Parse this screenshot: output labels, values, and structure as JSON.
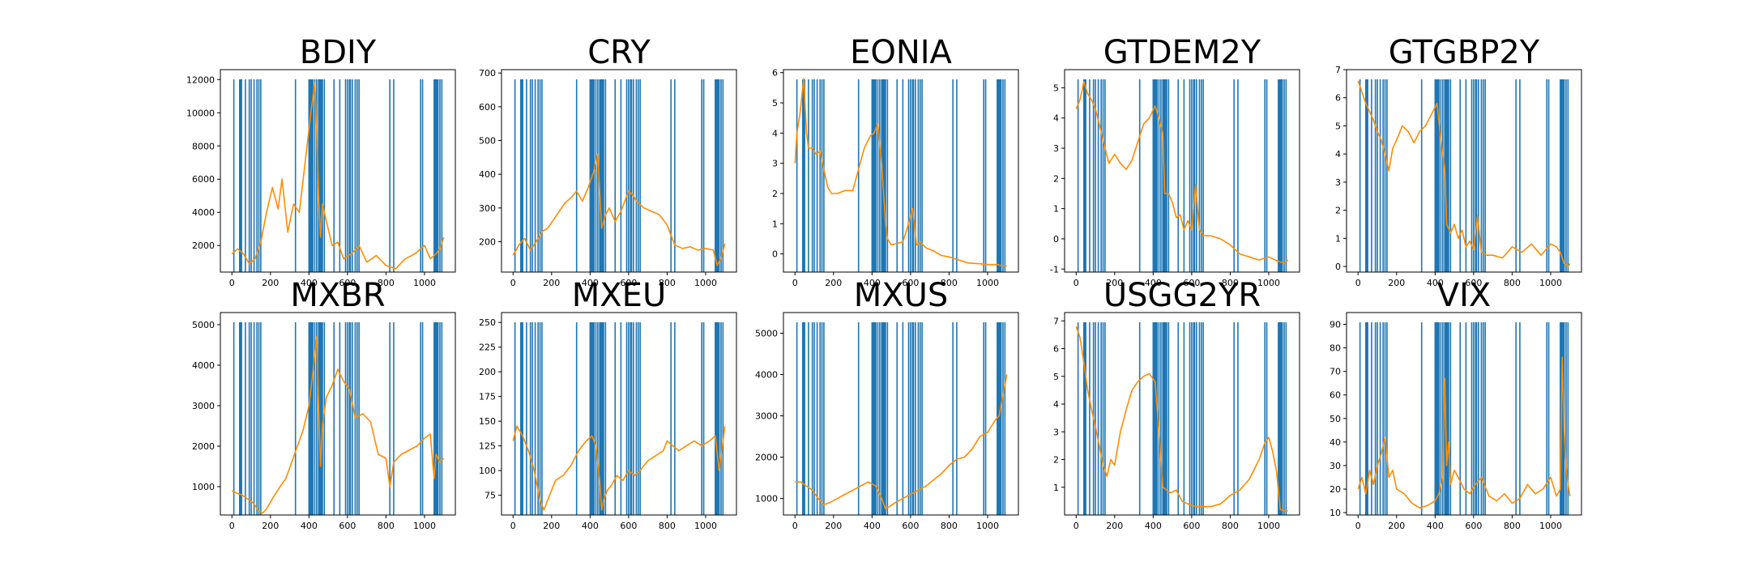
{
  "chart_data": {
    "type": "line",
    "layout": "grid 2x5",
    "event_lines": {
      "color": "#1f77b4",
      "x": [
        10,
        40,
        45,
        50,
        70,
        90,
        100,
        115,
        130,
        140,
        150,
        330,
        400,
        405,
        410,
        415,
        420,
        430,
        440,
        450,
        455,
        460,
        465,
        470,
        480,
        530,
        560,
        590,
        600,
        610,
        615,
        625,
        640,
        650,
        660,
        820,
        840,
        980,
        990,
        1050,
        1055,
        1060,
        1065,
        1070,
        1080,
        1090
      ]
    },
    "line_color": "#ff8c00",
    "panels": [
      {
        "title": "BDIY",
        "xlim": [
          -60,
          1160
        ],
        "xticks": [
          0,
          200,
          400,
          600,
          800,
          1000
        ],
        "ylim": [
          400,
          12600
        ],
        "yticks": [
          2000,
          4000,
          6000,
          8000,
          10000,
          12000
        ],
        "x": [
          0,
          30,
          60,
          90,
          120,
          150,
          180,
          210,
          240,
          260,
          290,
          320,
          350,
          380,
          410,
          430,
          440,
          450,
          460,
          470,
          490,
          520,
          550,
          580,
          620,
          660,
          700,
          750,
          800,
          850,
          900,
          950,
          1000,
          1030,
          1060,
          1080,
          1100
        ],
        "y": [
          1500,
          1800,
          1500,
          900,
          1200,
          2200,
          4000,
          5500,
          4200,
          6000,
          2800,
          4500,
          4000,
          7000,
          10000,
          11800,
          9000,
          5000,
          2500,
          4500,
          3500,
          2000,
          2200,
          1200,
          1500,
          2000,
          1000,
          1400,
          800,
          600,
          1200,
          1500,
          2000,
          1200,
          1500,
          1800,
          2500
        ]
      },
      {
        "title": "CRY",
        "xlim": [
          -60,
          1160
        ],
        "xticks": [
          0,
          200,
          400,
          600,
          800,
          1000
        ],
        "ylim": [
          110,
          710
        ],
        "yticks": [
          200,
          300,
          400,
          500,
          600,
          700
        ],
        "x": [
          0,
          30,
          60,
          90,
          120,
          150,
          180,
          210,
          240,
          270,
          300,
          330,
          360,
          390,
          420,
          440,
          450,
          460,
          480,
          500,
          530,
          560,
          600,
          620,
          640,
          680,
          720,
          760,
          800,
          840,
          880,
          920,
          960,
          1000,
          1040,
          1060,
          1080,
          1100
        ],
        "y": [
          160,
          190,
          210,
          175,
          200,
          230,
          240,
          265,
          290,
          315,
          330,
          350,
          320,
          360,
          410,
          460,
          350,
          240,
          280,
          300,
          260,
          290,
          350,
          340,
          320,
          300,
          290,
          280,
          250,
          190,
          180,
          185,
          175,
          180,
          175,
          130,
          150,
          195
        ]
      },
      {
        "title": "EONIA",
        "xlim": [
          -60,
          1160
        ],
        "xticks": [
          0,
          200,
          400,
          600,
          800,
          1000
        ],
        "ylim": [
          -0.6,
          6.1
        ],
        "yticks": [
          0,
          1,
          2,
          3,
          4,
          5,
          6
        ],
        "x": [
          0,
          10,
          25,
          45,
          60,
          70,
          90,
          110,
          130,
          150,
          170,
          190,
          220,
          260,
          300,
          330,
          360,
          390,
          410,
          430,
          450,
          470,
          480,
          500,
          530,
          560,
          590,
          610,
          620,
          630,
          650,
          680,
          720,
          760,
          800,
          850,
          900,
          950,
          1000,
          1050,
          1080,
          1100
        ],
        "y": [
          3.0,
          4.0,
          4.6,
          5.8,
          4.0,
          3.5,
          3.5,
          3.3,
          3.4,
          2.8,
          2.2,
          2.0,
          2.0,
          2.1,
          2.1,
          2.8,
          3.5,
          3.9,
          4.0,
          4.3,
          3.0,
          1.0,
          0.5,
          0.3,
          0.35,
          0.4,
          1.0,
          1.5,
          1.0,
          0.3,
          0.4,
          0.2,
          0.1,
          -0.05,
          -0.1,
          -0.2,
          -0.3,
          -0.32,
          -0.35,
          -0.35,
          -0.4,
          -0.4
        ]
      },
      {
        "title": "GTDEM2Y",
        "xlim": [
          -60,
          1160
        ],
        "xticks": [
          0,
          200,
          400,
          600,
          800,
          1000
        ],
        "ylim": [
          -1.1,
          5.6
        ],
        "yticks": [
          -1,
          0,
          1,
          2,
          3,
          4,
          5
        ],
        "x": [
          0,
          20,
          40,
          60,
          80,
          100,
          120,
          150,
          170,
          200,
          230,
          260,
          290,
          320,
          350,
          380,
          410,
          430,
          450,
          460,
          480,
          500,
          520,
          540,
          560,
          580,
          600,
          620,
          640,
          660,
          700,
          750,
          800,
          850,
          900,
          950,
          1000,
          1050,
          1080,
          1100
        ],
        "y": [
          4.3,
          4.6,
          5.2,
          4.8,
          4.6,
          4.3,
          3.8,
          3.0,
          2.5,
          2.8,
          2.5,
          2.3,
          2.6,
          3.2,
          3.8,
          4.0,
          4.4,
          4.0,
          3.5,
          1.5,
          1.5,
          1.2,
          0.7,
          0.8,
          0.3,
          0.6,
          0.3,
          1.8,
          0.3,
          0.1,
          0.1,
          0.0,
          -0.2,
          -0.5,
          -0.6,
          -0.7,
          -0.6,
          -0.75,
          -0.8,
          -0.7
        ]
      },
      {
        "title": "GTGBP2Y",
        "xlim": [
          -60,
          1160
        ],
        "xticks": [
          0,
          200,
          400,
          600,
          800,
          1000
        ],
        "ylim": [
          -0.2,
          7.0
        ],
        "yticks": [
          0,
          1,
          2,
          3,
          4,
          5,
          6,
          7
        ],
        "x": [
          0,
          20,
          40,
          60,
          80,
          100,
          120,
          140,
          160,
          180,
          200,
          230,
          260,
          290,
          320,
          350,
          380,
          410,
          430,
          450,
          460,
          480,
          500,
          520,
          540,
          560,
          580,
          600,
          620,
          640,
          670,
          700,
          750,
          800,
          850,
          900,
          950,
          1000,
          1030,
          1050,
          1070,
          1090,
          1100
        ],
        "y": [
          6.6,
          6.2,
          5.8,
          5.5,
          5.2,
          4.8,
          4.5,
          4.0,
          3.4,
          4.2,
          4.5,
          5.0,
          4.8,
          4.4,
          4.8,
          5.0,
          5.4,
          5.8,
          4.5,
          3.5,
          1.5,
          1.2,
          1.5,
          1.0,
          1.3,
          0.7,
          0.9,
          0.6,
          1.8,
          0.5,
          0.4,
          0.4,
          0.3,
          0.7,
          0.5,
          0.8,
          0.4,
          0.8,
          0.7,
          0.5,
          0.1,
          0.0,
          0.1
        ]
      },
      {
        "title": "MXBR",
        "xlim": [
          -60,
          1160
        ],
        "xticks": [
          0,
          200,
          400,
          600,
          800,
          1000
        ],
        "ylim": [
          300,
          5300
        ],
        "yticks": [
          1000,
          2000,
          3000,
          4000,
          5000
        ],
        "x": [
          0,
          20,
          50,
          80,
          110,
          140,
          160,
          180,
          210,
          250,
          280,
          310,
          340,
          370,
          400,
          420,
          440,
          450,
          460,
          470,
          490,
          520,
          550,
          580,
          610,
          640,
          680,
          720,
          760,
          800,
          820,
          840,
          880,
          920,
          960,
          1000,
          1030,
          1050,
          1060,
          1080,
          1100
        ],
        "y": [
          900,
          850,
          800,
          700,
          600,
          400,
          350,
          450,
          700,
          1000,
          1200,
          1600,
          2000,
          2400,
          3000,
          3800,
          4700,
          3000,
          1500,
          2500,
          3200,
          3500,
          3900,
          3600,
          3400,
          2700,
          2800,
          2600,
          1800,
          1700,
          1000,
          1600,
          1800,
          1900,
          2000,
          2200,
          2300,
          1200,
          1800,
          1600,
          1700
        ]
      },
      {
        "title": "MXEU",
        "xlim": [
          -60,
          1160
        ],
        "xticks": [
          0,
          200,
          400,
          600,
          800,
          1000
        ],
        "ylim": [
          55,
          260
        ],
        "yticks": [
          75,
          100,
          125,
          150,
          175,
          200,
          225,
          250
        ],
        "x": [
          0,
          20,
          50,
          80,
          110,
          140,
          160,
          190,
          220,
          260,
          300,
          340,
          380,
          410,
          430,
          450,
          460,
          470,
          490,
          510,
          540,
          570,
          600,
          630,
          660,
          700,
          740,
          780,
          800,
          830,
          860,
          900,
          940,
          980,
          1020,
          1050,
          1070,
          1090,
          1100
        ],
        "y": [
          130,
          145,
          135,
          120,
          100,
          70,
          60,
          75,
          90,
          95,
          105,
          120,
          130,
          135,
          125,
          90,
          60,
          70,
          80,
          85,
          95,
          90,
          100,
          95,
          100,
          110,
          115,
          120,
          130,
          125,
          120,
          125,
          130,
          125,
          130,
          135,
          100,
          130,
          145
        ]
      },
      {
        "title": "MXUS",
        "xlim": [
          -60,
          1160
        ],
        "xticks": [
          0,
          200,
          400,
          600,
          800,
          1000
        ],
        "ylim": [
          600,
          5500
        ],
        "yticks": [
          1000,
          2000,
          3000,
          4000,
          5000
        ],
        "x": [
          0,
          30,
          60,
          90,
          120,
          150,
          180,
          220,
          260,
          300,
          340,
          380,
          420,
          450,
          470,
          490,
          520,
          560,
          600,
          640,
          680,
          720,
          760,
          800,
          840,
          880,
          920,
          960,
          1000,
          1040,
          1060,
          1080,
          1100
        ],
        "y": [
          1400,
          1400,
          1300,
          1200,
          1000,
          850,
          900,
          1000,
          1100,
          1200,
          1300,
          1400,
          1300,
          1000,
          750,
          800,
          900,
          1000,
          1100,
          1200,
          1300,
          1450,
          1600,
          1800,
          1950,
          2000,
          2200,
          2500,
          2600,
          2900,
          3000,
          3500,
          4000
        ]
      },
      {
        "title": "USGG2YR",
        "xlim": [
          -60,
          1160
        ],
        "xticks": [
          0,
          200,
          400,
          600,
          800,
          1000
        ],
        "ylim": [
          0.0,
          7.3
        ],
        "yticks": [
          1,
          2,
          3,
          4,
          5,
          6,
          7
        ],
        "x": [
          0,
          20,
          40,
          60,
          80,
          100,
          120,
          140,
          160,
          180,
          200,
          230,
          260,
          290,
          320,
          350,
          380,
          410,
          430,
          450,
          470,
          490,
          520,
          550,
          580,
          620,
          660,
          700,
          750,
          800,
          850,
          900,
          950,
          980,
          1000,
          1020,
          1040,
          1060,
          1080,
          1100
        ],
        "y": [
          6.8,
          6.4,
          5.5,
          4.5,
          3.8,
          3.2,
          2.5,
          1.8,
          1.4,
          2.0,
          1.8,
          3.0,
          3.8,
          4.5,
          4.8,
          5.0,
          5.1,
          4.8,
          3.0,
          1.0,
          0.9,
          0.8,
          0.9,
          0.5,
          0.4,
          0.3,
          0.3,
          0.3,
          0.4,
          0.7,
          0.9,
          1.3,
          2.0,
          2.6,
          2.8,
          2.3,
          1.6,
          0.2,
          0.15,
          0.15
        ]
      },
      {
        "title": "VIX",
        "xlim": [
          -60,
          1160
        ],
        "xticks": [
          0,
          200,
          400,
          600,
          800,
          1000
        ],
        "ylim": [
          9,
          95
        ],
        "yticks": [
          10,
          20,
          30,
          40,
          50,
          60,
          70,
          80,
          90
        ],
        "x": [
          0,
          20,
          40,
          60,
          80,
          100,
          120,
          140,
          160,
          180,
          200,
          240,
          280,
          320,
          360,
          400,
          420,
          440,
          450,
          460,
          470,
          480,
          500,
          520,
          550,
          580,
          610,
          640,
          680,
          720,
          760,
          800,
          840,
          880,
          920,
          960,
          1000,
          1030,
          1050,
          1060,
          1070,
          1080,
          1090,
          1100
        ],
        "y": [
          20,
          25,
          18,
          28,
          22,
          30,
          35,
          42,
          25,
          28,
          20,
          18,
          14,
          12,
          13,
          15,
          18,
          25,
          67,
          30,
          40,
          22,
          28,
          25,
          20,
          18,
          22,
          25,
          17,
          15,
          18,
          14,
          16,
          22,
          18,
          20,
          25,
          17,
          20,
          76,
          45,
          30,
          22,
          17
        ]
      }
    ]
  }
}
